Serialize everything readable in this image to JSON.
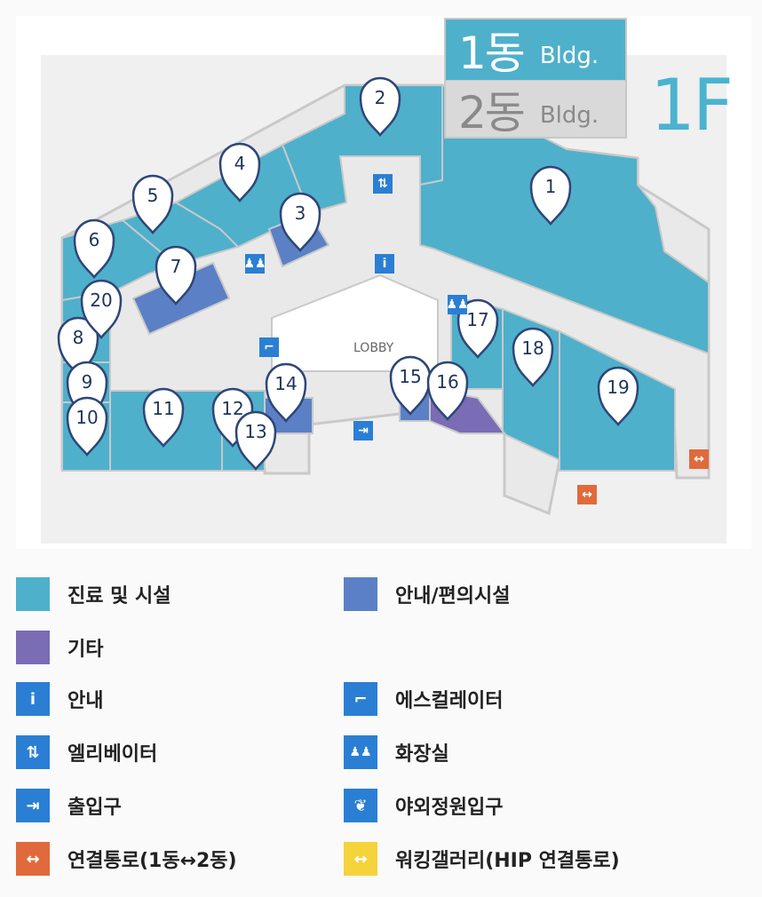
{
  "buildings": {
    "tab1": {
      "num": "1동",
      "eng": "Bldg."
    },
    "tab2": {
      "num": "2동",
      "eng": "Bldg."
    }
  },
  "floor": "1F",
  "lobby": "LOBBY",
  "markers": [
    "1",
    "2",
    "3",
    "4",
    "5",
    "6",
    "7",
    "8",
    "9",
    "10",
    "11",
    "12",
    "13",
    "14",
    "15",
    "16",
    "17",
    "18",
    "19",
    "20"
  ],
  "colors": {
    "clinic": "#4fb0cb",
    "guide": "#5b80c6",
    "other": "#7a6cb5",
    "icon_blue": "#2a7fd4",
    "connector_orange": "#e06a3b",
    "hip_yellow": "#f5d33b",
    "corridor": "#ececec"
  },
  "legend": {
    "clinic": "진료 및 시설",
    "guide": "안내/편의시설",
    "other": "기타",
    "info": "안내",
    "escalator": "에스컬레이터",
    "elevator": "엘리베이터",
    "restroom": "화장실",
    "exit": "출입구",
    "garden": "야외정원입구",
    "connector": "연결통로(1동↔2동)",
    "hip": "워킹갤러리(HIP 연결통로)"
  }
}
